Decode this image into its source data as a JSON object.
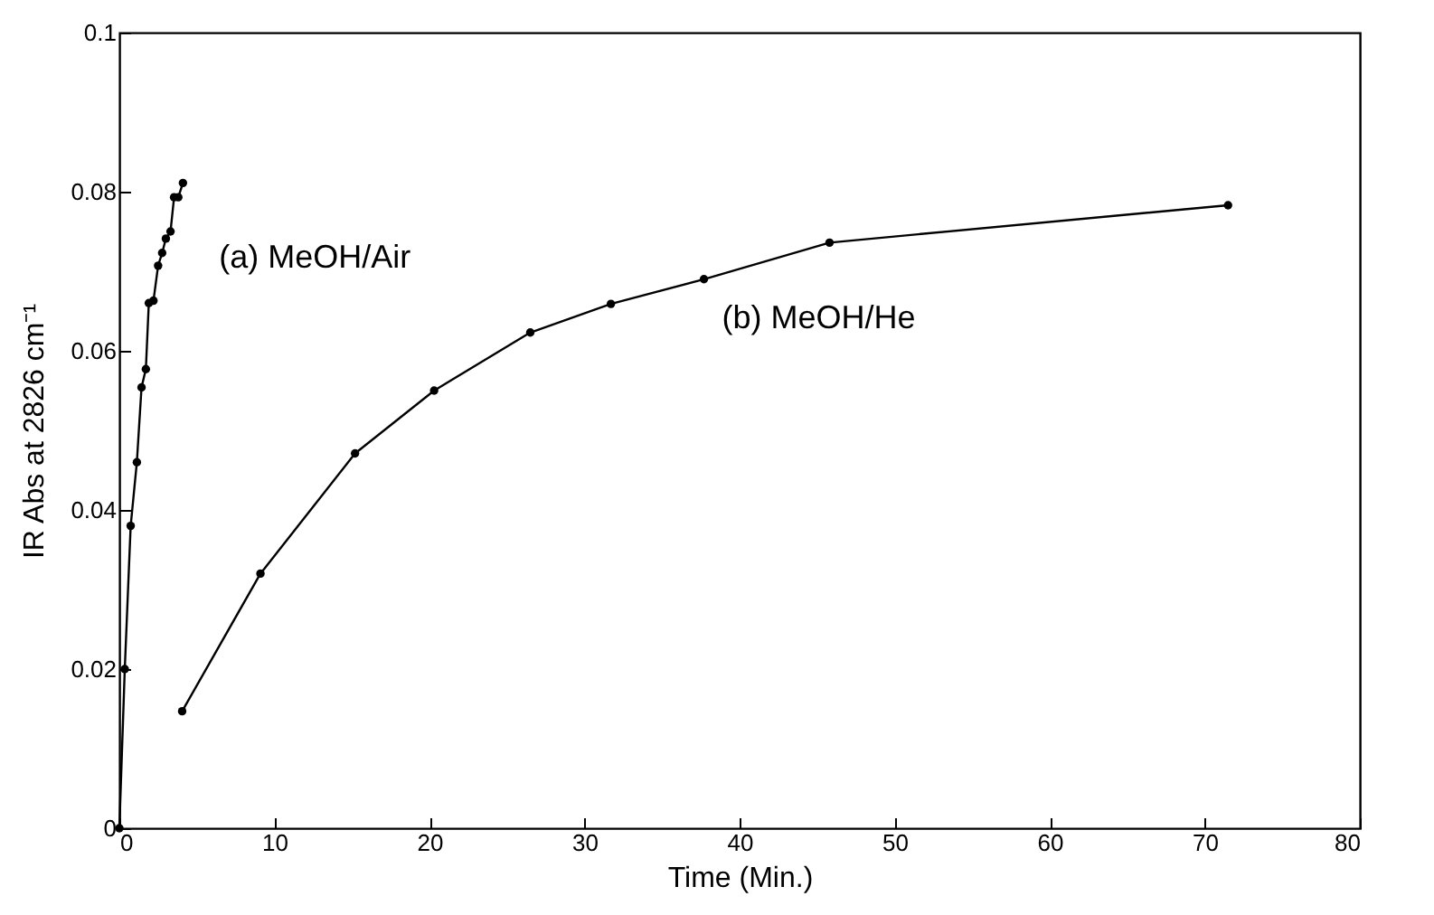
{
  "chart_data": {
    "type": "line",
    "xlabel": "Time (Min.)",
    "ylabel": "IR Abs at 2826 cm⁻¹",
    "series": [
      {
        "name": "(a) MeOH/Air",
        "color": "#000000",
        "x": [
          0,
          0.35,
          0.73,
          1.13,
          1.43,
          1.71,
          1.9,
          2.2,
          2.5,
          2.76,
          3.0,
          3.3,
          3.53,
          3.8,
          4.1
        ],
        "values": [
          0,
          0.02,
          0.038,
          0.046,
          0.0554,
          0.0577,
          0.066,
          0.0663,
          0.0707,
          0.0723,
          0.0741,
          0.075,
          0.0793,
          0.0793,
          0.0811
        ]
      },
      {
        "name": "(b) MeOH/He",
        "color": "#000000",
        "x": [
          4.05,
          9.1,
          15.2,
          20.3,
          26.5,
          31.7,
          37.7,
          45.8,
          71.5
        ],
        "values": [
          0.0147,
          0.032,
          0.0471,
          0.055,
          0.0623,
          0.0659,
          0.069,
          0.0736,
          0.0783
        ]
      }
    ],
    "xlim": [
      0,
      80
    ],
    "xticks": [
      0,
      10,
      20,
      30,
      40,
      50,
      60,
      70,
      80
    ],
    "ylim": [
      0,
      0.1
    ],
    "yticks": [
      0,
      0.02,
      0.04,
      0.06,
      0.08,
      0.1
    ],
    "grid": false,
    "marker": "circle",
    "line_style": "solid"
  }
}
